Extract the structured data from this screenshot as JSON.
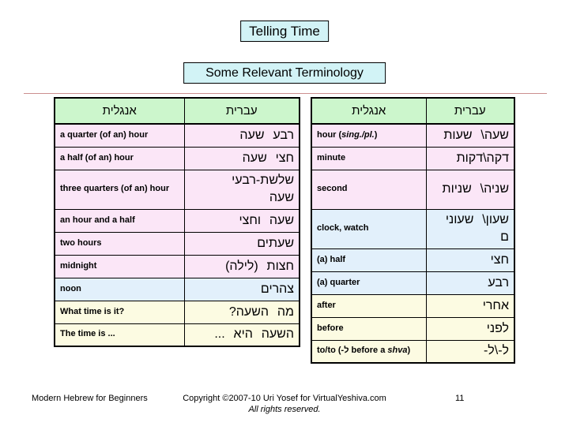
{
  "titles": {
    "main": "Telling Time",
    "subtitle": "Some Relevant Terminology"
  },
  "colors": {
    "title_box_cyan": "#d2f3f6",
    "header_green": "#ccf6cc",
    "pink": "#fbe6f7",
    "blue": "#e2f0fb",
    "yellow": "#fcfbe2",
    "divider_red": "#cc8f8f",
    "border": "#000000"
  },
  "column_headers": {
    "english": "אנגלית",
    "hebrew": "עברית"
  },
  "left_table": {
    "rows": [
      {
        "en": "a quarter (of an) hour",
        "he": "רבע שעה",
        "tone": "pink"
      },
      {
        "en": "a half (of an) hour",
        "he": "חצי שעה",
        "tone": "pink"
      },
      {
        "en": "three quarters (of an) hour",
        "he": "שלשת-רבעי שעה",
        "tone": "pink",
        "tall": true,
        "wrap": true
      },
      {
        "en": "an hour and a half",
        "he": "שעה וחצי",
        "tone": "pink"
      },
      {
        "en": "two hours",
        "he": "שעתים",
        "tone": "pink"
      },
      {
        "en": "midnight",
        "he": "חצות (לילה)",
        "tone": "pink"
      },
      {
        "en": "noon",
        "he": "צהרים",
        "tone": "blue"
      },
      {
        "en": "What time is it?",
        "he": "מה השעה?",
        "tone": "yellow"
      },
      {
        "en": "The time is ...",
        "he": "השעה היא ...",
        "tone": "yellow"
      }
    ]
  },
  "right_table": {
    "rows": [
      {
        "en": "hour (",
        "en_it": "sing./pl.",
        "en_post": ")",
        "he": "שעה\\ שעות",
        "tone": "pink"
      },
      {
        "en": "minute",
        "he": "דקה\\דקות",
        "tone": "pink"
      },
      {
        "en": "second",
        "he": "שניה\\ שניות",
        "tone": "pink",
        "tall": true,
        "breakall": true
      },
      {
        "en": "clock, watch",
        "he": "שעון\\ שעונים",
        "tone": "blue",
        "tall": true,
        "breakall": true
      },
      {
        "en": "(a) half",
        "he": "חצי",
        "tone": "blue"
      },
      {
        "en": "(a) quarter",
        "he": "רבע",
        "tone": "blue"
      },
      {
        "en": "after",
        "he": "אחרי",
        "tone": "yellow"
      },
      {
        "en": "before",
        "he": "לפני",
        "tone": "yellow"
      },
      {
        "en": "to/to (-ל before a ",
        "en_it": "shva",
        "en_post": ")",
        "he": "ל-\\ל-",
        "tone": "yellow"
      }
    ]
  },
  "footer": {
    "course": "Modern Hebrew for Beginners",
    "copyright_line1": "Copyright ©2007-10 Uri Yosef for VirtualYeshiva.com",
    "copyright_line2": "All rights reserved.",
    "page_number": "11"
  }
}
